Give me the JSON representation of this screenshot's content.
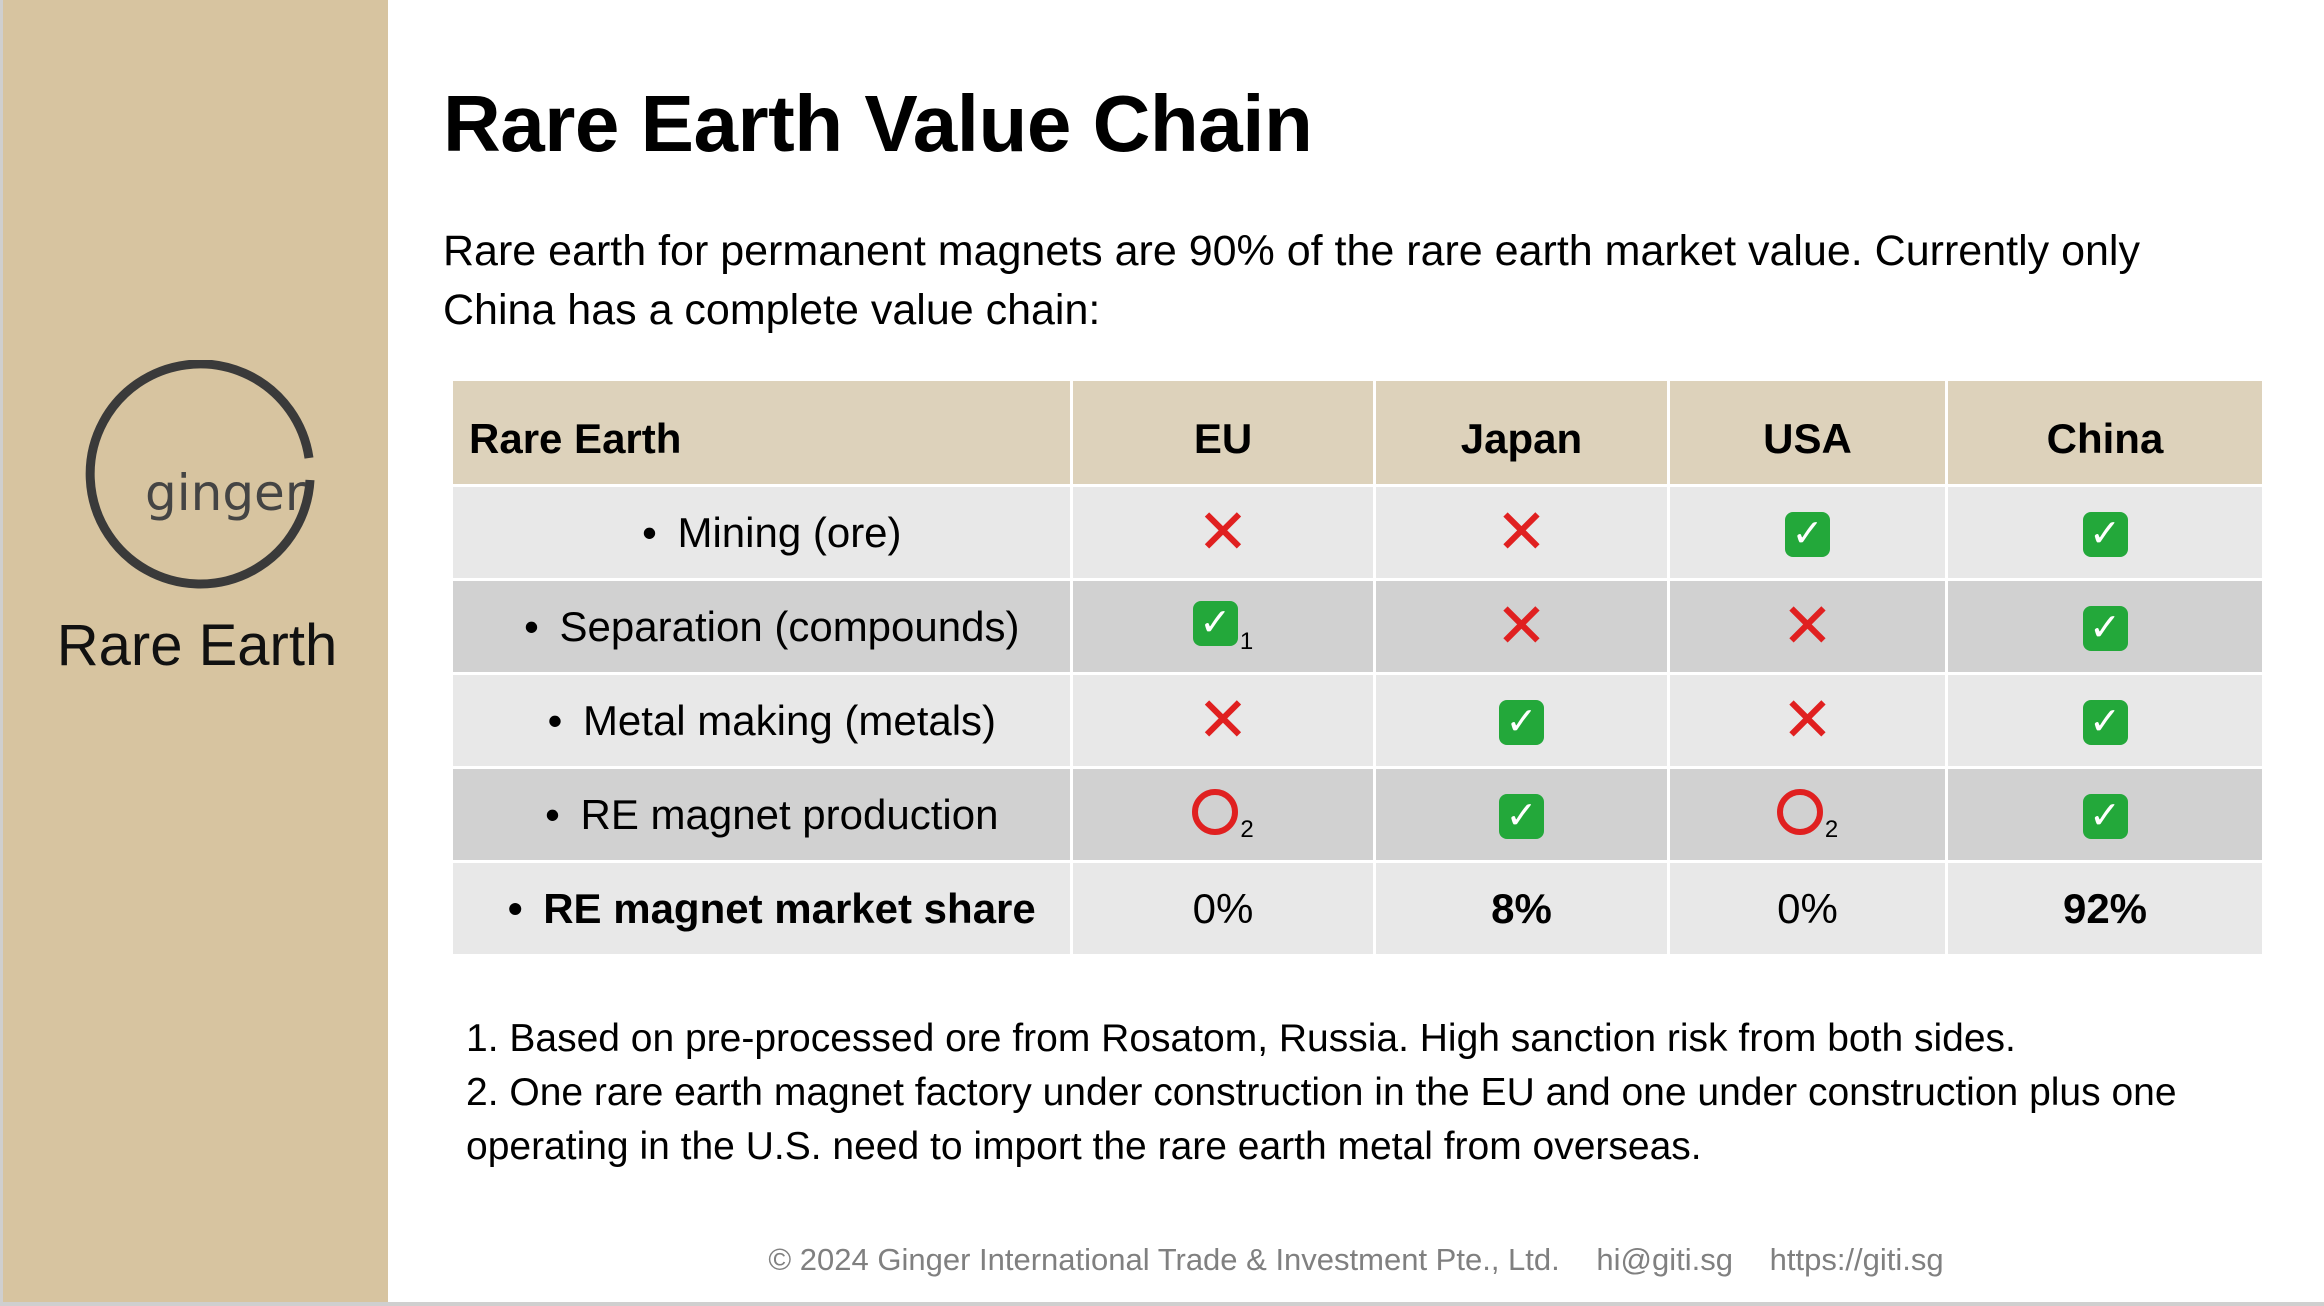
{
  "sidebar": {
    "logo_text": "ginger",
    "title": "Rare Earth"
  },
  "header": {
    "title": "Rare Earth Value Chain"
  },
  "intro": "Rare earth for permanent magnets are 90% of the rare earth market value. Currently only China has a complete value chain:",
  "table": {
    "columns": [
      "Rare Earth",
      "EU",
      "Japan",
      "USA",
      "China"
    ],
    "bullet": "•",
    "rows": [
      {
        "label": "Mining (ore)",
        "cells": [
          {
            "icon": "cross-icon",
            "glyph": "✕",
            "note": ""
          },
          {
            "icon": "cross-icon",
            "glyph": "✕",
            "note": ""
          },
          {
            "icon": "check-icon",
            "glyph": "✓",
            "note": ""
          },
          {
            "icon": "check-icon",
            "glyph": "✓",
            "note": ""
          }
        ]
      },
      {
        "label": "Separation (compounds)",
        "cells": [
          {
            "icon": "check-icon",
            "glyph": "✓",
            "note": "1"
          },
          {
            "icon": "cross-icon",
            "glyph": "✕",
            "note": ""
          },
          {
            "icon": "cross-icon",
            "glyph": "✕",
            "note": ""
          },
          {
            "icon": "check-icon",
            "glyph": "✓",
            "note": ""
          }
        ]
      },
      {
        "label": "Metal making (metals)",
        "cells": [
          {
            "icon": "cross-icon",
            "glyph": "✕",
            "note": ""
          },
          {
            "icon": "check-icon",
            "glyph": "✓",
            "note": ""
          },
          {
            "icon": "cross-icon",
            "glyph": "✕",
            "note": ""
          },
          {
            "icon": "check-icon",
            "glyph": "✓",
            "note": ""
          }
        ]
      },
      {
        "label": "RE magnet production",
        "cells": [
          {
            "icon": "circle-icon",
            "glyph": "",
            "note": "2"
          },
          {
            "icon": "check-icon",
            "glyph": "✓",
            "note": ""
          },
          {
            "icon": "circle-icon",
            "glyph": "",
            "note": "2"
          },
          {
            "icon": "check-icon",
            "glyph": "✓",
            "note": ""
          }
        ]
      }
    ],
    "share_row": {
      "label": "RE magnet market share",
      "values": [
        "0%",
        "8%",
        "0%",
        "92%"
      ]
    }
  },
  "notes": [
    "1. Based on pre-processed ore from Rosatom, Russia. High sanction risk from both sides.",
    "2. One rare earth magnet factory under construction in the EU and one under construction plus one operating in the U.S. need to import the rare earth metal from overseas."
  ],
  "footer": {
    "copyright": "© 2024 Ginger International Trade & Investment Pte., Ltd.",
    "email": "hi@giti.sg",
    "url": "https://giti.sg"
  },
  "colors": {
    "sidebar": "#d7c4a0",
    "header_row": "#ddd2bb",
    "row_light": "#e8e8e8",
    "row_dark": "#d1d1d1",
    "cross": "#e02020",
    "check": "#23a83a"
  }
}
